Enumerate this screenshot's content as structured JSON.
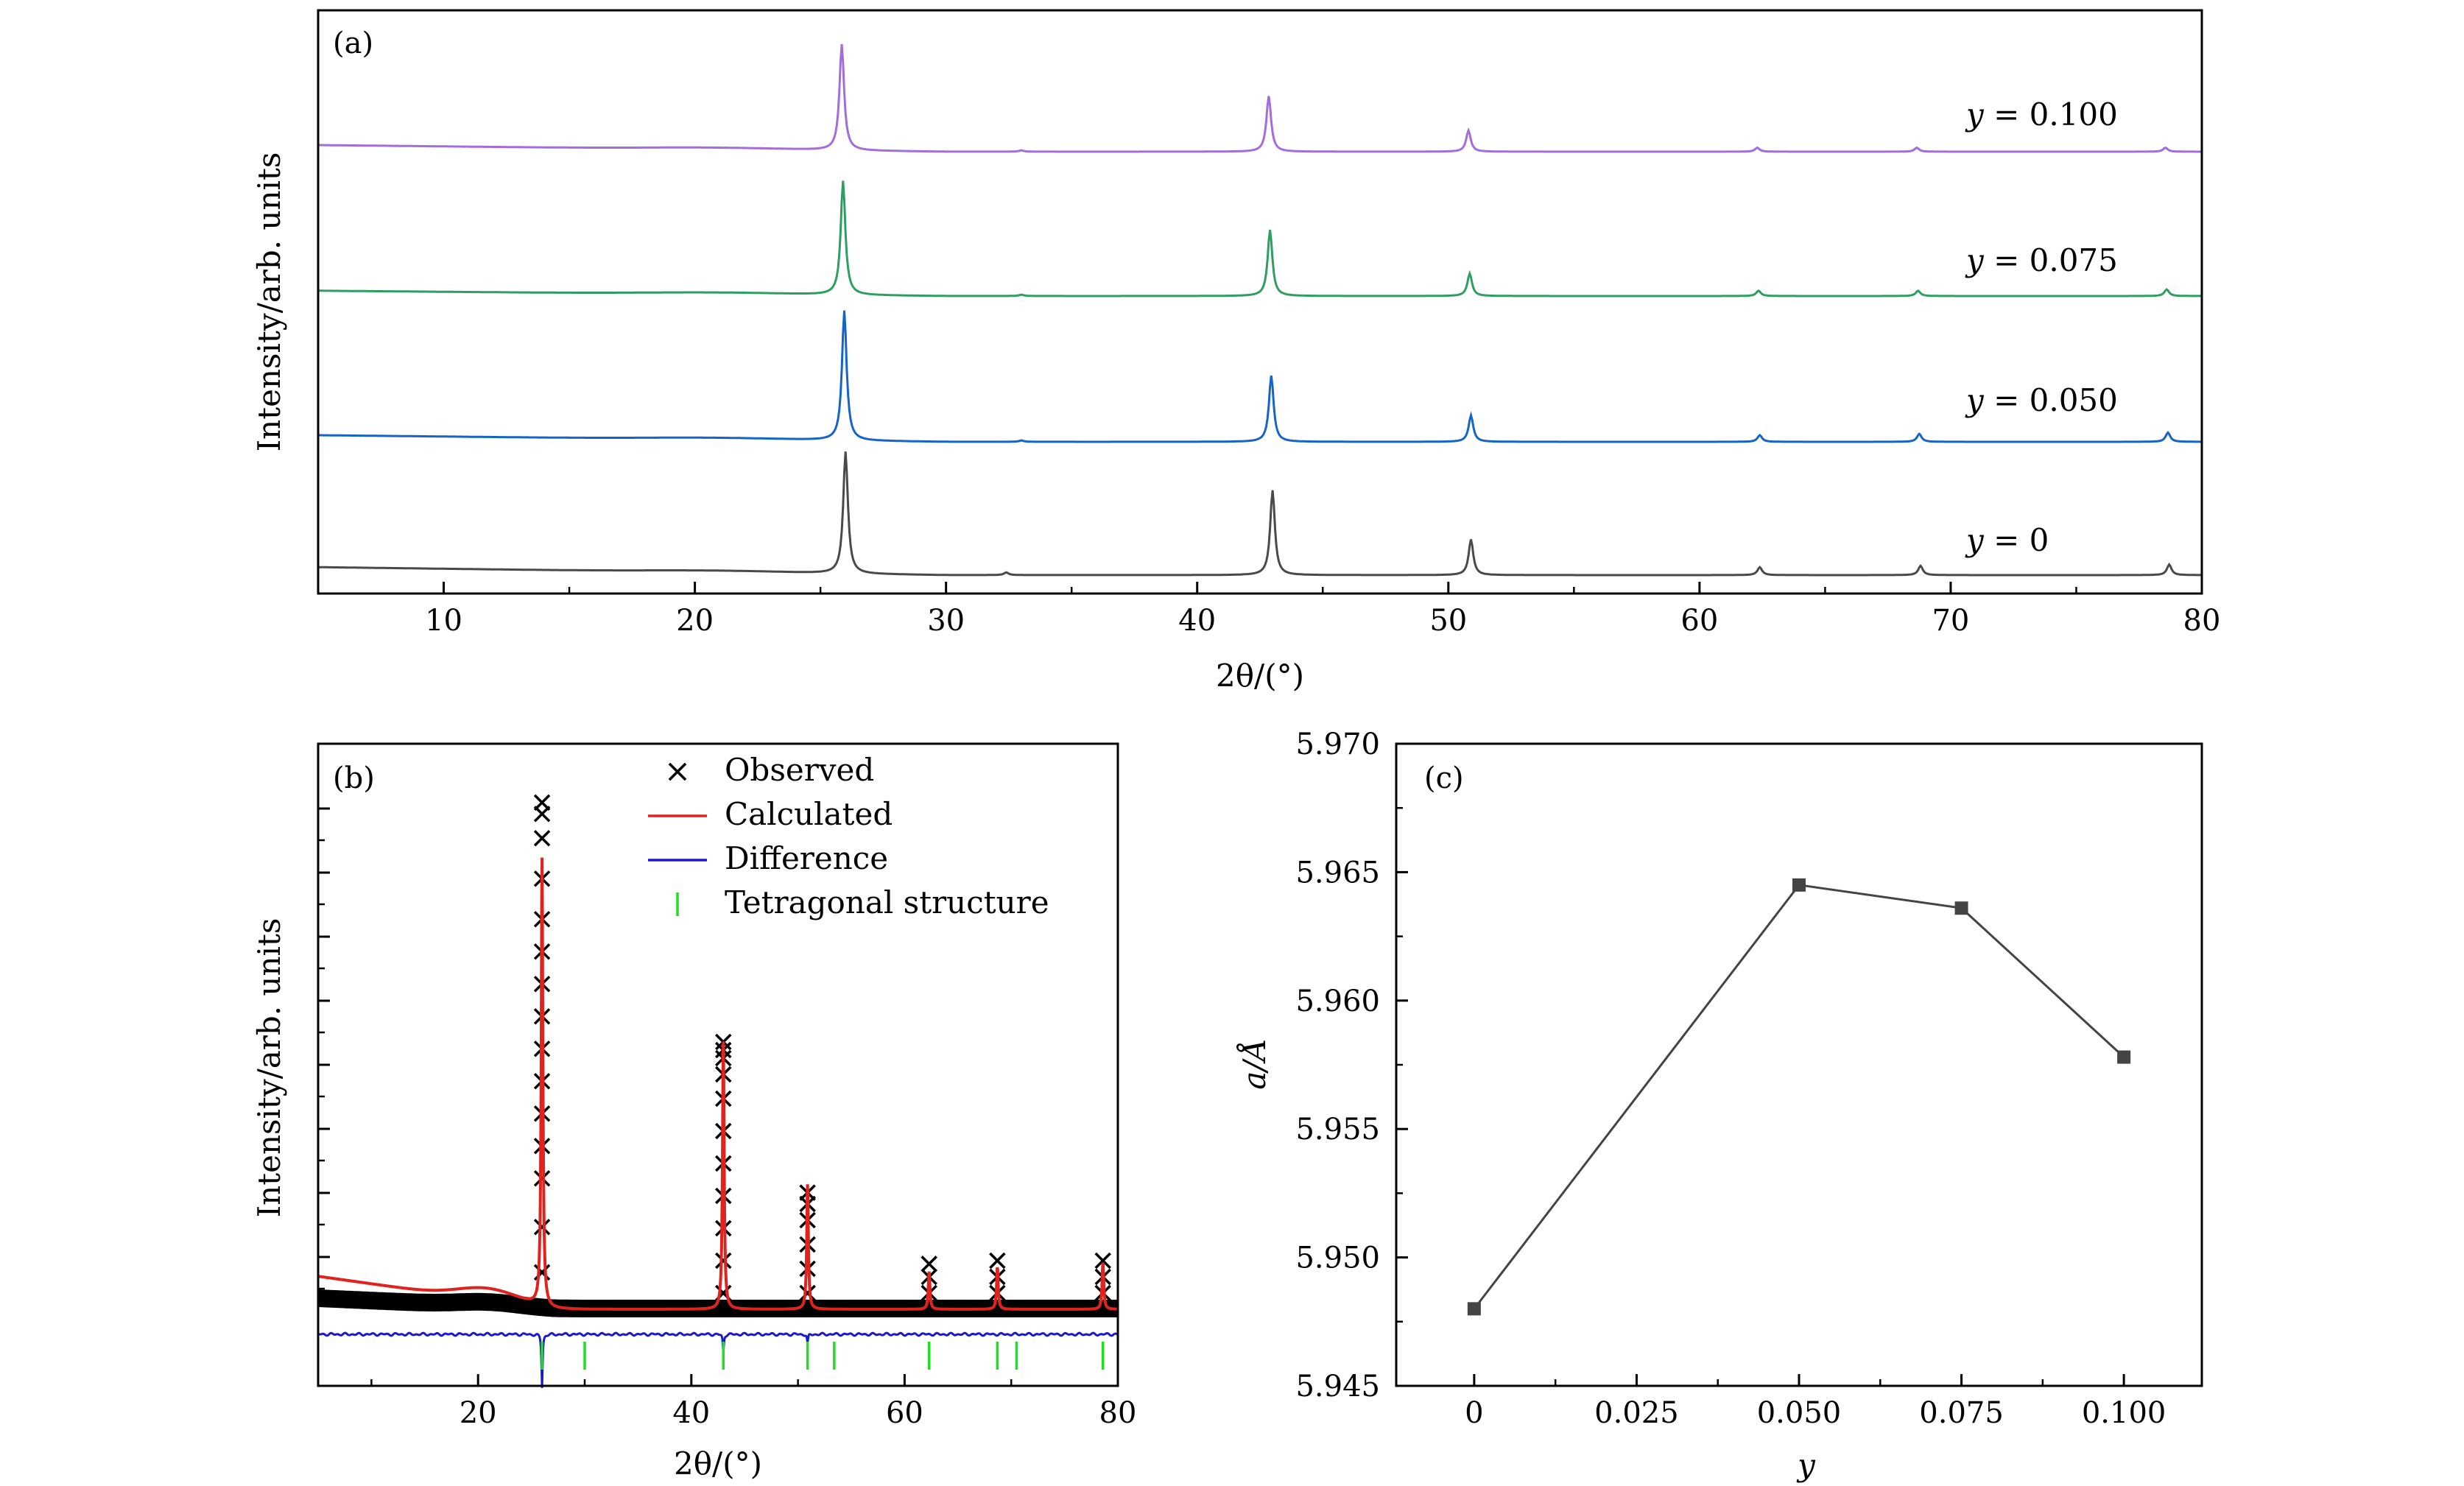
{
  "chart_data": [
    {
      "panel": "(a)",
      "type": "line",
      "xlabel": "2θ/(°)",
      "ylabel": "Intensity/arb. units",
      "xlim": [
        5,
        80
      ],
      "xticks": [
        10,
        20,
        30,
        40,
        50,
        60,
        70,
        80
      ],
      "peak_positions": [
        26.0,
        32.4,
        33.0,
        43.0,
        50.9,
        62.4,
        68.7,
        78.6
      ],
      "series": [
        {
          "name": "y = 0",
          "label_var": "y",
          "label_value": "= 0",
          "color": "#4a4a4a",
          "peaks": [
            {
              "x": 26.0,
              "h": 92
            },
            {
              "x": 32.4,
              "h": 2
            },
            {
              "x": 43.0,
              "h": 64
            },
            {
              "x": 50.9,
              "h": 27
            },
            {
              "x": 62.4,
              "h": 6
            },
            {
              "x": 68.8,
              "h": 7
            },
            {
              "x": 78.7,
              "h": 8
            }
          ]
        },
        {
          "name": "y = 0.050",
          "label_var": "y",
          "label_value": "= 0.050",
          "color": "#1565c8",
          "peaks": [
            {
              "x": 25.95,
              "h": 98
            },
            {
              "x": 33.0,
              "h": 1
            },
            {
              "x": 42.95,
              "h": 50
            },
            {
              "x": 50.9,
              "h": 20
            },
            {
              "x": 62.4,
              "h": 5
            },
            {
              "x": 68.75,
              "h": 6
            },
            {
              "x": 78.65,
              "h": 7
            }
          ]
        },
        {
          "name": "y = 0.075",
          "label_var": "y",
          "label_value": "= 0.075",
          "color": "#2e9e62",
          "peaks": [
            {
              "x": 25.9,
              "h": 86
            },
            {
              "x": 33.0,
              "h": 1
            },
            {
              "x": 42.9,
              "h": 50
            },
            {
              "x": 50.85,
              "h": 17
            },
            {
              "x": 62.35,
              "h": 4
            },
            {
              "x": 68.7,
              "h": 4
            },
            {
              "x": 78.6,
              "h": 5
            }
          ]
        },
        {
          "name": "y = 0.100",
          "label_var": "y",
          "label_value": "= 0.100",
          "color": "#a36ddb",
          "peaks": [
            {
              "x": 25.85,
              "h": 80
            },
            {
              "x": 33.0,
              "h": 1
            },
            {
              "x": 42.85,
              "h": 42
            },
            {
              "x": 50.8,
              "h": 16
            },
            {
              "x": 62.3,
              "h": 3
            },
            {
              "x": 68.65,
              "h": 3
            },
            {
              "x": 78.55,
              "h": 3
            }
          ]
        }
      ]
    },
    {
      "panel": "(b)",
      "type": "line",
      "xlabel": "2θ/(°)",
      "ylabel": "Intensity/arb. units",
      "xlim": [
        5,
        80
      ],
      "xticks": [
        20,
        40,
        60,
        80
      ],
      "legend": [
        {
          "label": "Observed",
          "marker": "×",
          "color": "#000000"
        },
        {
          "label": "Calculated",
          "color": "#e0231f"
        },
        {
          "label": "Difference",
          "color": "#1a1acd"
        },
        {
          "label": "Tetragonal structure",
          "color": "#22dd22"
        }
      ],
      "bragg_positions": [
        26.0,
        30.0,
        43.0,
        50.9,
        53.4,
        62.3,
        68.7,
        70.5,
        78.6
      ],
      "calculated_peaks": [
        {
          "x": 26.0,
          "h": 190
        },
        {
          "x": 43.0,
          "h": 115
        },
        {
          "x": 50.9,
          "h": 53
        },
        {
          "x": 62.3,
          "h": 16
        },
        {
          "x": 68.7,
          "h": 18
        },
        {
          "x": 78.6,
          "h": 20
        }
      ],
      "observed_columns": [
        {
          "x": 26.0,
          "ys": [
            22,
            50,
            80,
            100,
            120,
            140,
            160,
            180,
            200,
            220,
            240,
            265,
            290,
            305,
            312
          ]
        },
        {
          "x": 43.0,
          "ys": [
            10,
            30,
            50,
            70,
            90,
            110,
            130,
            145,
            155,
            160,
            165
          ]
        },
        {
          "x": 50.9,
          "ys": [
            10,
            25,
            40,
            55,
            65,
            72
          ]
        },
        {
          "x": 62.3,
          "ys": [
            10,
            20,
            28
          ]
        },
        {
          "x": 68.7,
          "ys": [
            10,
            20,
            30
          ]
        },
        {
          "x": 78.6,
          "ys": [
            10,
            20,
            30
          ]
        }
      ],
      "difference_spikes": [
        {
          "x": 26.0,
          "h": -45
        },
        {
          "x": 43.0,
          "h": -15
        },
        {
          "x": 50.9,
          "h": -8
        }
      ]
    },
    {
      "panel": "(c)",
      "type": "line",
      "xlabel": "y",
      "ylabel": "a/Å",
      "xlim": [
        -0.012,
        0.112
      ],
      "ylim": [
        5.945,
        5.97
      ],
      "xticks": [
        "0",
        "0.025",
        "0.050",
        "0.075",
        "0.100"
      ],
      "yticks": [
        "5.945",
        "5.950",
        "5.955",
        "5.960",
        "5.965",
        "5.970"
      ],
      "x": [
        0,
        0.05,
        0.075,
        0.1
      ],
      "y": [
        5.948,
        5.9645,
        5.9636,
        5.9578
      ],
      "color": "#444444"
    }
  ]
}
